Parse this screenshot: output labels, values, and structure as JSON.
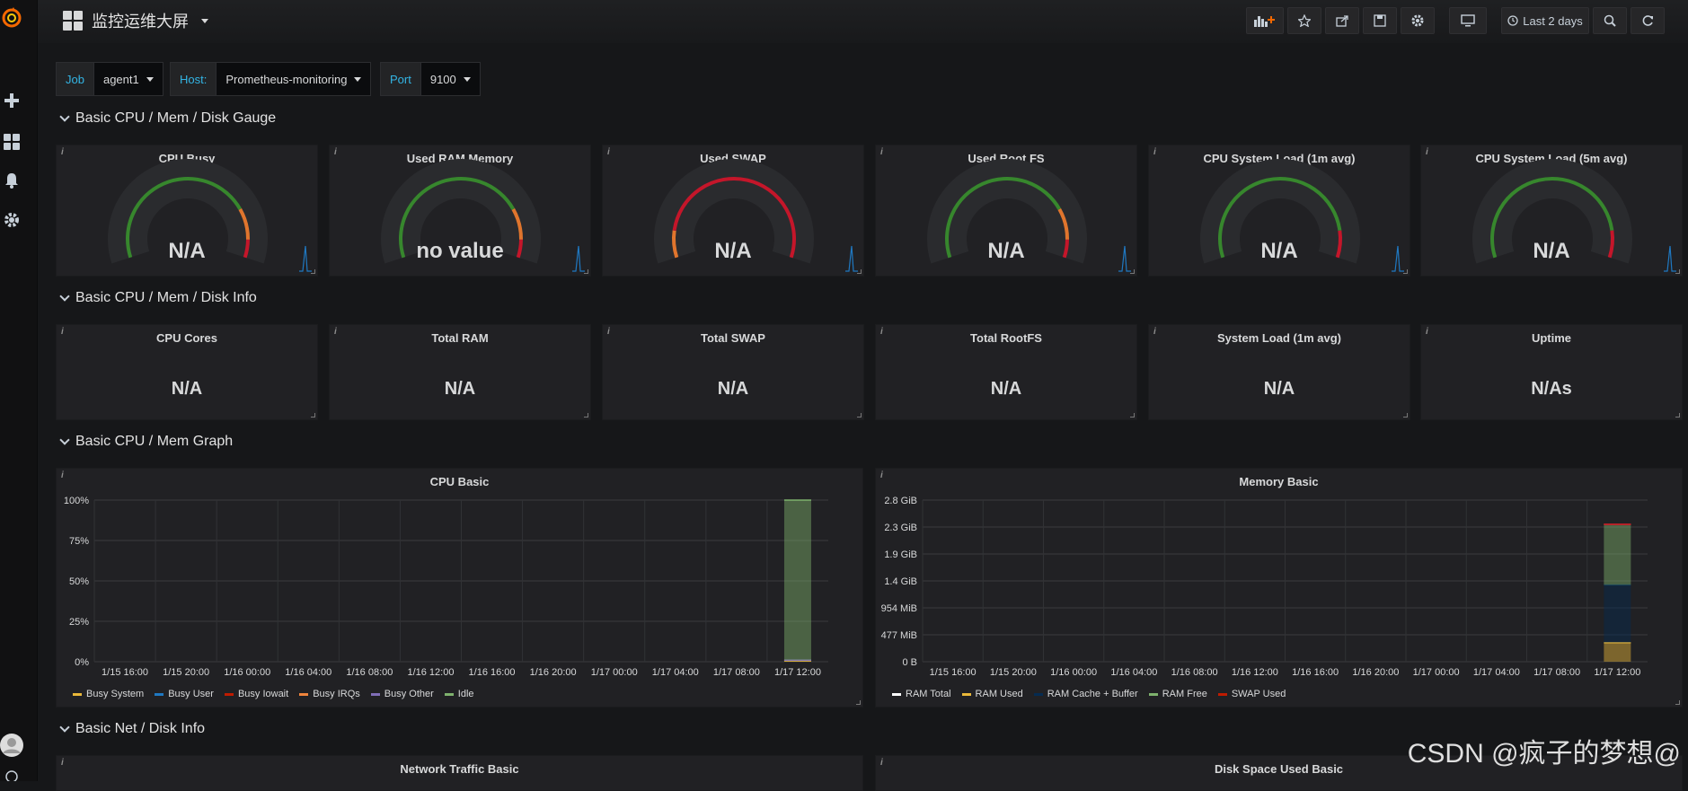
{
  "app": {
    "title": "监控运维大屏"
  },
  "toolbar": {
    "time_range": "Last 2 days"
  },
  "variables": [
    {
      "label": "Job",
      "value": "agent1"
    },
    {
      "label": "Host:",
      "value": "Prometheus-monitoring"
    },
    {
      "label": "Port",
      "value": "9100"
    }
  ],
  "rows": {
    "gauge": "Basic CPU / Mem / Disk Gauge",
    "info": "Basic CPU / Mem / Disk Info",
    "graph": "Basic CPU / Mem Graph",
    "net": "Basic Net / Disk Info"
  },
  "gauges": [
    {
      "title": "CPU Busy",
      "value": "N/A"
    },
    {
      "title": "Used RAM Memory",
      "value": "no value"
    },
    {
      "title": "Used SWAP",
      "value": "N/A"
    },
    {
      "title": "Used Root FS",
      "value": "N/A"
    },
    {
      "title": "CPU System Load (1m avg)",
      "value": "N/A"
    },
    {
      "title": "CPU System Load (5m avg)",
      "value": "N/A"
    }
  ],
  "stats": [
    {
      "title": "CPU Cores",
      "value": "N/A"
    },
    {
      "title": "Total RAM",
      "value": "N/A"
    },
    {
      "title": "Total SWAP",
      "value": "N/A"
    },
    {
      "title": "Total RootFS",
      "value": "N/A"
    },
    {
      "title": "System Load (1m avg)",
      "value": "N/A"
    },
    {
      "title": "Uptime",
      "value": "N/As"
    }
  ],
  "graphs": {
    "cpu_title": "CPU Basic",
    "mem_title": "Memory Basic",
    "net_title": "Network Traffic Basic",
    "disk_title": "Disk Space Used Basic"
  },
  "chart_data": [
    {
      "type": "area",
      "title": "CPU Basic",
      "x": [
        "1/15 16:00",
        "1/15 20:00",
        "1/16 00:00",
        "1/16 04:00",
        "1/16 08:00",
        "1/16 12:00",
        "1/16 16:00",
        "1/16 20:00",
        "1/17 00:00",
        "1/17 04:00",
        "1/17 08:00",
        "1/17 12:00"
      ],
      "y_ticks": [
        "0%",
        "25%",
        "50%",
        "75%",
        "100%"
      ],
      "ylim": [
        0,
        100
      ],
      "series": [
        {
          "name": "Busy System",
          "color": "#eab839",
          "values": [
            null,
            null,
            null,
            null,
            null,
            null,
            null,
            null,
            null,
            null,
            null,
            0.5
          ]
        },
        {
          "name": "Busy User",
          "color": "#1f78c1",
          "values": [
            null,
            null,
            null,
            null,
            null,
            null,
            null,
            null,
            null,
            null,
            null,
            0.5
          ]
        },
        {
          "name": "Busy Iowait",
          "color": "#bf1b00",
          "values": [
            null,
            null,
            null,
            null,
            null,
            null,
            null,
            null,
            null,
            null,
            null,
            0
          ]
        },
        {
          "name": "Busy IRQs",
          "color": "#ef843c",
          "values": [
            null,
            null,
            null,
            null,
            null,
            null,
            null,
            null,
            null,
            null,
            null,
            0
          ]
        },
        {
          "name": "Busy Other",
          "color": "#806eb7",
          "values": [
            null,
            null,
            null,
            null,
            null,
            null,
            null,
            null,
            null,
            null,
            null,
            0
          ]
        },
        {
          "name": "Idle",
          "color": "#7eb26d",
          "values": [
            null,
            null,
            null,
            null,
            null,
            null,
            null,
            null,
            null,
            null,
            null,
            99
          ]
        }
      ],
      "grid": true,
      "legend": "bottom"
    },
    {
      "type": "area",
      "title": "Memory Basic",
      "x": [
        "1/15 16:00",
        "1/15 20:00",
        "1/16 00:00",
        "1/16 04:00",
        "1/16 08:00",
        "1/16 12:00",
        "1/16 16:00",
        "1/16 20:00",
        "1/17 00:00",
        "1/17 04:00",
        "1/17 08:00",
        "1/17 12:00"
      ],
      "y_ticks": [
        "0 B",
        "477 MiB",
        "954 MiB",
        "1.4 GiB",
        "1.9 GiB",
        "2.3 GiB",
        "2.8 GiB"
      ],
      "ylim": [
        0,
        2.8
      ],
      "y_unit": "GiB",
      "series": [
        {
          "name": "RAM Total",
          "color": "#ffffff",
          "values": [
            null,
            null,
            null,
            null,
            null,
            null,
            null,
            null,
            null,
            null,
            null,
            2.38
          ]
        },
        {
          "name": "RAM Used",
          "color": "#eab839",
          "values": [
            null,
            null,
            null,
            null,
            null,
            null,
            null,
            null,
            null,
            null,
            null,
            0.33
          ]
        },
        {
          "name": "RAM Cache + Buffer",
          "color": "#052b51",
          "values": [
            null,
            null,
            null,
            null,
            null,
            null,
            null,
            null,
            null,
            null,
            null,
            1.0
          ]
        },
        {
          "name": "RAM Free",
          "color": "#7eb26d",
          "values": [
            null,
            null,
            null,
            null,
            null,
            null,
            null,
            null,
            null,
            null,
            null,
            1.05
          ]
        },
        {
          "name": "SWAP Used",
          "color": "#bf1b00",
          "values": [
            null,
            null,
            null,
            null,
            null,
            null,
            null,
            null,
            null,
            null,
            null,
            0
          ]
        }
      ],
      "grid": true,
      "legend": "bottom"
    }
  ],
  "watermark": "CSDN @疯子的梦想@"
}
